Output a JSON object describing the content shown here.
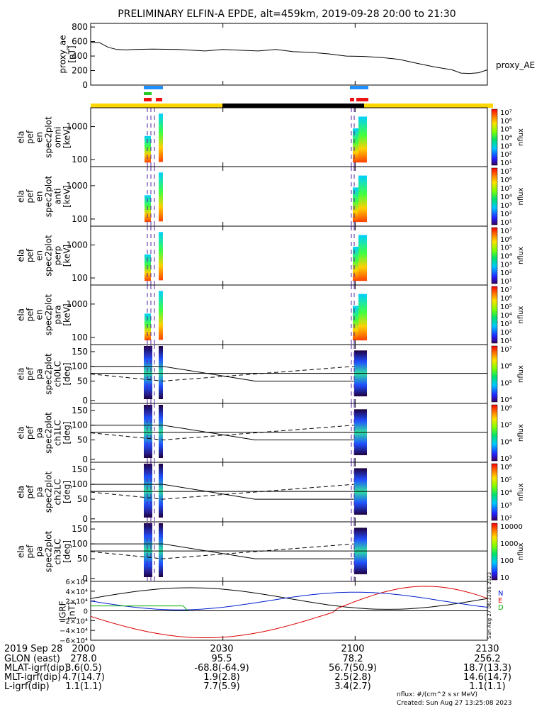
{
  "title": "PRELIMINARY ELFIN-A EPDE, alt=459km, 2019-09-28 20:00 to 21:30",
  "colors": {
    "day": "#ffd700",
    "night": "#000000",
    "blue_bar": "#1e90ff",
    "green_bar": "#22cc22",
    "red_bar": "#ee1111"
  },
  "chart_data": [
    {
      "type": "line",
      "name": "proxy_ae",
      "ylabel": "proxy_ae\n[nT]",
      "ylabel_lines": [
        "proxy_ae",
        "[nT]"
      ],
      "legend": "proxy_AE",
      "yticks": [
        "800",
        "600",
        "400",
        "200",
        "0"
      ],
      "ylim": [
        0,
        850
      ],
      "xlim": [
        0,
        90
      ],
      "x": [
        0,
        2,
        4,
        6,
        8,
        10,
        14,
        20,
        26,
        30,
        34,
        38,
        42,
        46,
        50,
        54,
        58,
        62,
        66,
        70,
        74,
        78,
        82,
        84,
        86,
        88,
        90
      ],
      "values": [
        590,
        585,
        520,
        490,
        485,
        490,
        495,
        490,
        470,
        490,
        480,
        470,
        490,
        460,
        450,
        430,
        400,
        395,
        380,
        355,
        300,
        250,
        210,
        165,
        160,
        170,
        210
      ]
    },
    {
      "type": "heatmap",
      "ylabel_lines": [
        "ela",
        "pef",
        "en",
        "spec2plot",
        "omni",
        "[keV]"
      ],
      "yticks": [
        "1000",
        "100"
      ],
      "zlabel": "nflux",
      "zticks": [
        "10⁷",
        "10⁶",
        "10⁵",
        "10⁴",
        "10³",
        "10²",
        "10¹"
      ]
    },
    {
      "type": "heatmap",
      "ylabel_lines": [
        "ela",
        "pef",
        "en",
        "spec2plot",
        "anti",
        "[keV]"
      ],
      "yticks": [
        "1000",
        "100"
      ],
      "zlabel": "nflux",
      "zticks": [
        "10⁷",
        "10⁶",
        "10⁵",
        "10⁴",
        "10³",
        "10²",
        "10¹"
      ]
    },
    {
      "type": "heatmap",
      "ylabel_lines": [
        "ela",
        "pef",
        "en",
        "spec2plot",
        "perp",
        "[keV]"
      ],
      "yticks": [
        "1000",
        "100"
      ],
      "zlabel": "nflux",
      "zticks": [
        "10⁷",
        "10⁶",
        "10⁵",
        "10⁴",
        "10³",
        "10²",
        "10¹"
      ]
    },
    {
      "type": "heatmap",
      "ylabel_lines": [
        "ela",
        "pef",
        "en",
        "spec2plot",
        "para",
        "[keV]"
      ],
      "yticks": [
        "1000",
        "100"
      ],
      "zlabel": "nflux",
      "zticks": [
        "10⁷",
        "10⁶",
        "10⁵",
        "10⁴",
        "10³",
        "10²",
        "10¹"
      ]
    },
    {
      "type": "heatmap",
      "ylabel_lines": [
        "ela",
        "pef",
        "pa",
        "spec2plot",
        "ch0LC",
        "[deg]"
      ],
      "yticks": [
        "150",
        "100",
        "50",
        "0"
      ],
      "zlabel": "nflux",
      "zticks": [
        "10⁷",
        "10⁶",
        "10⁵",
        "10⁴"
      ]
    },
    {
      "type": "heatmap",
      "ylabel_lines": [
        "ela",
        "pef",
        "pa",
        "spec2plot",
        "ch1LC",
        "[deg]"
      ],
      "yticks": [
        "150",
        "100",
        "50",
        "0"
      ],
      "zlabel": "nflux",
      "zticks": [
        "10⁶",
        "10⁵",
        "10⁴",
        "10³"
      ]
    },
    {
      "type": "heatmap",
      "ylabel_lines": [
        "ela",
        "pef",
        "pa",
        "spec2plot",
        "ch2LC",
        "[deg]"
      ],
      "yticks": [
        "150",
        "100",
        "50",
        "0"
      ],
      "zlabel": "nflux",
      "zticks": [
        "10⁶",
        "10⁵",
        "10⁴",
        "10³",
        "10²"
      ]
    },
    {
      "type": "heatmap",
      "ylabel_lines": [
        "ela",
        "pef",
        "pa",
        "spec2plot",
        "ch3LC",
        "[deg]"
      ],
      "yticks": [
        "150",
        "100",
        "50",
        "0"
      ],
      "zlabel": "nflux",
      "zticks": [
        "10000",
        "1000",
        "100",
        "10"
      ]
    },
    {
      "type": "line",
      "name": "IGRF",
      "ylabel_lines": [
        "IGRF",
        "[nT]"
      ],
      "yticks": [
        "6×10⁴",
        "4×10⁴",
        "2×10⁴",
        "0",
        "−2×10⁴",
        "−4×10⁴",
        "−6×10⁴"
      ],
      "ylim": [
        -60000,
        60000
      ],
      "legend": [
        "N",
        "E",
        "D"
      ],
      "stamp": "Sun Aug 27 06:33:06 2023"
    }
  ],
  "footer": {
    "xticks": [
      "2000",
      "2030",
      "2100",
      "2130"
    ],
    "rows": [
      {
        "label": "2019 Sep 28",
        "values": [
          "2000",
          "",
          "",
          ""
        ]
      },
      {
        "label": "GLON (east)",
        "values": [
          "278.0",
          "95.5",
          "78.2",
          "256.2"
        ]
      },
      {
        "label": "MLAT-igrf(dip)",
        "values": [
          "3.6(0.5)",
          "-68.8(-64.9)",
          "56.7(50.9)",
          "18.7(13.3)"
        ]
      },
      {
        "label": "MLT-igrf(dip)",
        "values": [
          "4.7(14.7)",
          "1.9(2.8)",
          "2.5(2.8)",
          "14.6(14.7)"
        ]
      },
      {
        "label": "L-igrf(dip)",
        "values": [
          "1.1(1.1)",
          "7.7(5.9)",
          "3.4(2.7)",
          "1.1(1.1)"
        ]
      }
    ],
    "units": "nflux: #/(cm^2 s sr MeV)",
    "created": "Created: Sun Aug 27 13:25:08 2023"
  }
}
